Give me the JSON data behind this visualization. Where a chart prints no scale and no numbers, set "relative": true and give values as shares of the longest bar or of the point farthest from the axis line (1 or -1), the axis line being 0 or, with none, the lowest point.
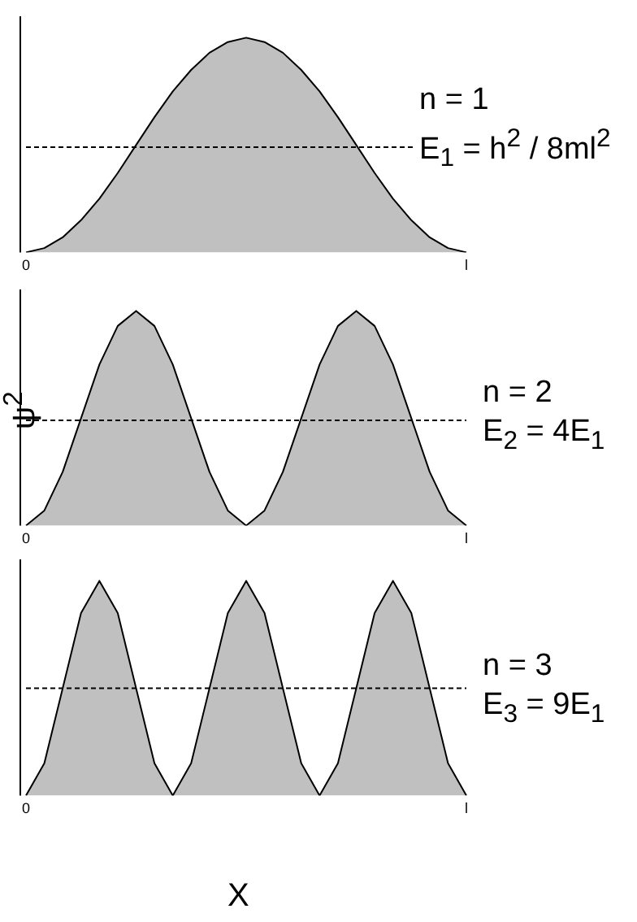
{
  "chart_data": [
    {
      "type": "area",
      "relative": true,
      "tick_labels": "x",
      "grid": false,
      "legend": false,
      "marker": "none",
      "categories": [
        "0",
        null,
        null,
        null,
        null,
        null,
        null,
        null,
        null,
        null,
        null,
        null,
        null,
        null,
        null,
        null,
        null,
        null,
        null,
        null,
        null,
        null,
        null,
        null,
        "l"
      ],
      "series": [
        {
          "color": "#c0c0c0",
          "values": [
            0,
            0.02,
            0.07,
            0.15,
            0.25,
            0.37,
            0.5,
            0.63,
            0.75,
            0.85,
            0.93,
            0.98,
            1,
            0.98,
            0.93,
            0.85,
            0.75,
            0.63,
            0.5,
            0.37,
            0.25,
            0.15,
            0.07,
            0.02,
            0
          ]
        }
      ],
      "ref_lines": [
        {
          "axis": "y",
          "value": 0.49,
          "line_style": "dashed"
        }
      ],
      "annotations": [
        "n = 1",
        "E$_{1}$ = h$^{2}$ / 8ml$^{2}$"
      ]
    },
    {
      "type": "area",
      "relative": true,
      "tick_labels": "x",
      "grid": false,
      "legend": false,
      "marker": "none",
      "ylabel": "ψ$^{2}$",
      "categories": [
        "0",
        null,
        null,
        null,
        null,
        null,
        null,
        null,
        null,
        null,
        null,
        null,
        null,
        null,
        null,
        null,
        null,
        null,
        null,
        null,
        null,
        null,
        null,
        null,
        "l"
      ],
      "series": [
        {
          "color": "#c0c0c0",
          "values": [
            0,
            0.07,
            0.25,
            0.5,
            0.75,
            0.93,
            1,
            0.93,
            0.75,
            0.5,
            0.25,
            0.07,
            0,
            0.07,
            0.25,
            0.5,
            0.75,
            0.93,
            1,
            0.93,
            0.75,
            0.5,
            0.25,
            0.07,
            0
          ]
        }
      ],
      "ref_lines": [
        {
          "axis": "y",
          "value": 0.49,
          "line_style": "dashed"
        }
      ],
      "annotations": [
        "n = 2",
        "E$_{2}$ = 4E$_{1}$"
      ]
    },
    {
      "type": "area",
      "relative": true,
      "tick_labels": "x",
      "grid": false,
      "legend": false,
      "marker": "none",
      "xlabel": "X",
      "categories": [
        "0",
        null,
        null,
        null,
        null,
        null,
        null,
        null,
        null,
        null,
        null,
        null,
        null,
        null,
        null,
        null,
        null,
        null,
        null,
        null,
        null,
        null,
        null,
        null,
        "l"
      ],
      "series": [
        {
          "color": "#c0c0c0",
          "values": [
            0,
            0.15,
            0.5,
            0.85,
            1,
            0.85,
            0.5,
            0.15,
            0,
            0.15,
            0.5,
            0.85,
            1,
            0.85,
            0.5,
            0.15,
            0,
            0.15,
            0.5,
            0.85,
            1,
            0.85,
            0.5,
            0.15,
            0
          ]
        }
      ],
      "ref_lines": [
        {
          "axis": "y",
          "value": 0.5,
          "line_style": "dashed"
        }
      ],
      "annotations": [
        "n = 3",
        "E$_{3}$ = 9E$_{1}$"
      ]
    }
  ]
}
